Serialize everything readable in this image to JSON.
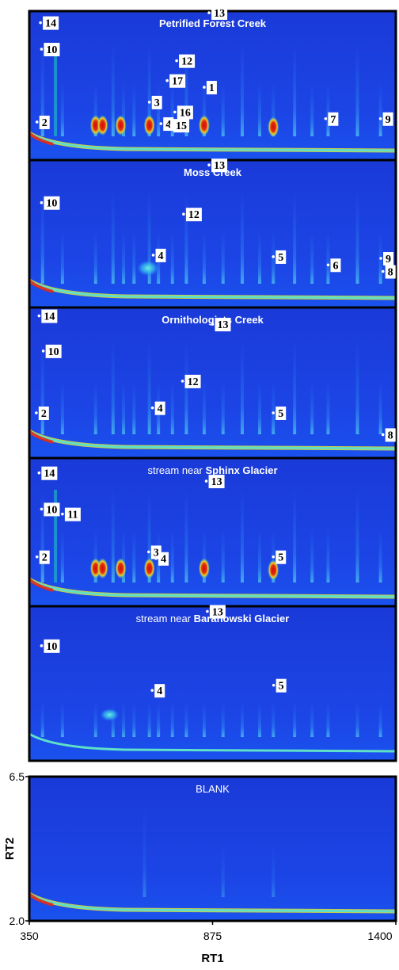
{
  "chart_data": {
    "type": "heatmap",
    "description_axis": {
      "xlabel": "RT1",
      "ylabel": "RT2",
      "x_ticks": [
        "350",
        "875",
        "1400"
      ],
      "y_ticks": [
        "6.5",
        "2.0"
      ],
      "xlim": [
        350,
        1400
      ],
      "ylim": [
        2.0,
        6.5
      ]
    },
    "colors": {
      "background": "#1438e0",
      "frame": "#000000",
      "baseline": "#5fe0c8",
      "hot": "#e01810",
      "warm": "#f0d020"
    },
    "panels": [
      {
        "id": "petrified",
        "title_parts": [
          {
            "text": "Petrified Forest Creek",
            "bold": true
          }
        ],
        "labels": [
          {
            "text": "14",
            "x": 382,
            "y": 6.15
          },
          {
            "text": "10",
            "x": 385,
            "y": 5.35
          },
          {
            "text": "13",
            "x": 865,
            "y": 6.45
          },
          {
            "text": "12",
            "x": 772,
            "y": 5.0
          },
          {
            "text": "17",
            "x": 745,
            "y": 4.4
          },
          {
            "text": "1",
            "x": 851,
            "y": 4.2
          },
          {
            "text": "3",
            "x": 694,
            "y": 3.75
          },
          {
            "text": "16",
            "x": 767,
            "y": 3.45
          },
          {
            "text": "2",
            "x": 372,
            "y": 3.15
          },
          {
            "text": "4",
            "x": 727,
            "y": 3.1
          },
          {
            "text": "15",
            "x": 756,
            "y": 3.05
          },
          {
            "text": "7",
            "x": 1199,
            "y": 3.25
          },
          {
            "text": "9",
            "x": 1356,
            "y": 3.25
          }
        ]
      },
      {
        "id": "moss",
        "title_parts": [
          {
            "text": "Moss Creek",
            "bold": true
          }
        ],
        "labels": [
          {
            "text": "13",
            "x": 865,
            "y": 6.35
          },
          {
            "text": "10",
            "x": 385,
            "y": 5.2
          },
          {
            "text": "12",
            "x": 792,
            "y": 4.85
          },
          {
            "text": "4",
            "x": 705,
            "y": 3.6
          },
          {
            "text": "5",
            "x": 1049,
            "y": 3.55
          },
          {
            "text": "6",
            "x": 1206,
            "y": 3.3
          },
          {
            "text": "9",
            "x": 1357,
            "y": 3.5
          },
          {
            "text": "8",
            "x": 1363,
            "y": 3.1
          }
        ]
      },
      {
        "id": "ornithologists",
        "title_parts": [
          {
            "text": "Ornithologists Creek",
            "bold": true
          }
        ],
        "labels": [
          {
            "text": "14",
            "x": 378,
            "y": 6.25
          },
          {
            "text": "13",
            "x": 875,
            "y": 6.0
          },
          {
            "text": "10",
            "x": 390,
            "y": 5.2
          },
          {
            "text": "12",
            "x": 789,
            "y": 4.3
          },
          {
            "text": "4",
            "x": 703,
            "y": 3.5
          },
          {
            "text": "2",
            "x": 370,
            "y": 3.35
          },
          {
            "text": "5",
            "x": 1049,
            "y": 3.35
          },
          {
            "text": "8",
            "x": 1363,
            "y": 2.7
          }
        ]
      },
      {
        "id": "sphinx",
        "title_parts": [
          {
            "text": "stream near ",
            "bold": false
          },
          {
            "text": "Sphinx Glacier",
            "bold": true
          }
        ],
        "labels": [
          {
            "text": "14",
            "x": 378,
            "y": 6.05
          },
          {
            "text": "13",
            "x": 857,
            "y": 5.8
          },
          {
            "text": "10",
            "x": 385,
            "y": 4.95
          },
          {
            "text": "11",
            "x": 445,
            "y": 4.8
          },
          {
            "text": "3",
            "x": 692,
            "y": 3.65
          },
          {
            "text": "4",
            "x": 713,
            "y": 3.45
          },
          {
            "text": "2",
            "x": 372,
            "y": 3.5
          },
          {
            "text": "5",
            "x": 1049,
            "y": 3.5
          }
        ]
      },
      {
        "id": "baranowski",
        "title_parts": [
          {
            "text": "stream near ",
            "bold": false
          },
          {
            "text": "Baranowski Glacier",
            "bold": true
          }
        ],
        "labels": [
          {
            "text": "13",
            "x": 860,
            "y": 6.35
          },
          {
            "text": "10",
            "x": 385,
            "y": 5.35
          },
          {
            "text": "5",
            "x": 1050,
            "y": 4.2
          },
          {
            "text": "4",
            "x": 702,
            "y": 4.05
          }
        ]
      },
      {
        "id": "blank",
        "title_parts": [
          {
            "text": "BLANK",
            "bold": false
          }
        ],
        "labels": []
      }
    ]
  }
}
